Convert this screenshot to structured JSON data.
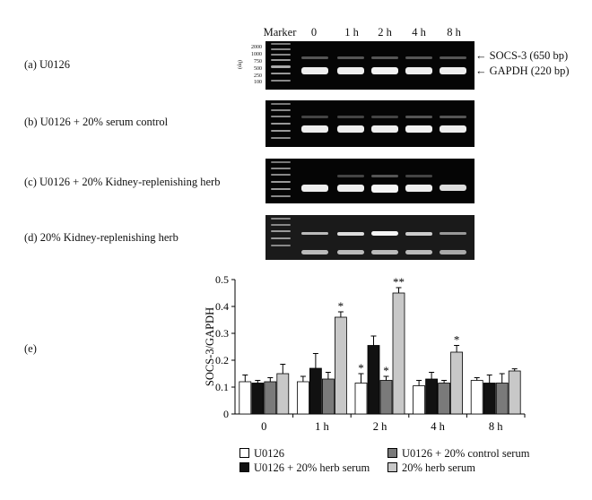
{
  "gel_header": {
    "marker": "Marker",
    "lanes": [
      "0",
      "1 h",
      "2 h",
      "4 h",
      "8 h"
    ]
  },
  "ladder": {
    "unit": "(bp)",
    "sizes": [
      "2000",
      "1000",
      "750",
      "500",
      "250",
      "100"
    ]
  },
  "band_labels": {
    "socs3": "SOCS-3 (650 bp)",
    "gapdh": "GAPDH (220 bp)"
  },
  "panels": [
    {
      "label": "(a) U0126"
    },
    {
      "label": "(b) U0126 + 20% serum control"
    },
    {
      "label": "(c) U0126 + 20% Kidney-replenishing herb"
    },
    {
      "label": "(d) 20% Kidney-replenishing herb"
    }
  ],
  "panel_e_label": "(e)",
  "chart_data": {
    "type": "bar",
    "ylabel": "SOCS-3/GAPDH",
    "xlabel": "",
    "ylim": [
      0,
      0.5
    ],
    "yticks": [
      "0",
      "0.1",
      "0.2",
      "0.3",
      "0.4",
      "0.5"
    ],
    "categories": [
      "0",
      "1 h",
      "2 h",
      "4 h",
      "8 h"
    ],
    "series": [
      {
        "name": "U0126",
        "color": "#ffffff",
        "values": [
          0.12,
          0.12,
          0.115,
          0.105,
          0.125
        ],
        "errors": [
          0.025,
          0.02,
          0.035,
          0.02,
          0.01
        ],
        "stars": [
          "",
          "",
          "*",
          "",
          ""
        ]
      },
      {
        "name": "U0126 + 20% herb serum",
        "color": "#111111",
        "values": [
          0.115,
          0.17,
          0.255,
          0.13,
          0.115
        ],
        "errors": [
          0.01,
          0.055,
          0.035,
          0.025,
          0.03
        ],
        "stars": [
          "",
          "",
          "",
          "",
          ""
        ]
      },
      {
        "name": "U0126 + 20% control serum",
        "color": "#7a7a7a",
        "values": [
          0.12,
          0.13,
          0.125,
          0.115,
          0.115
        ],
        "errors": [
          0.015,
          0.025,
          0.015,
          0.01,
          0.035
        ],
        "stars": [
          "",
          "",
          "*",
          "",
          ""
        ]
      },
      {
        "name": "20% herb serum",
        "color": "#c8c8c8",
        "values": [
          0.15,
          0.36,
          0.45,
          0.23,
          0.16
        ],
        "errors": [
          0.035,
          0.02,
          0.02,
          0.025,
          0.008
        ],
        "stars": [
          "",
          "*",
          "**",
          "*",
          ""
        ]
      }
    ],
    "legend_position": "bottom"
  }
}
